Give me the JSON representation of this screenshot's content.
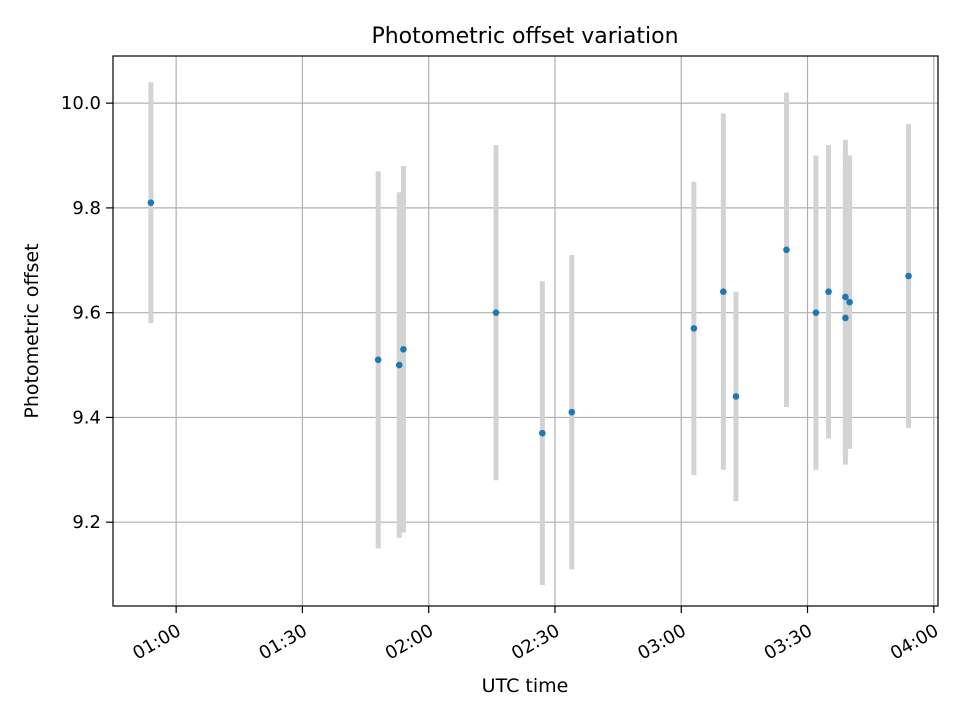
{
  "chart_data": {
    "type": "scatter",
    "title": "Photometric offset variation",
    "xlabel": "UTC time",
    "ylabel": "Photometric offset",
    "x_format": "time HH:MM (UTC)",
    "xlim": [
      "00:45",
      "04:01"
    ],
    "ylim": [
      9.04,
      10.09
    ],
    "x_ticks": [
      "01:00",
      "01:30",
      "02:00",
      "02:30",
      "03:00",
      "03:30",
      "04:00"
    ],
    "y_ticks": [
      "9.2",
      "9.4",
      "9.6",
      "9.8",
      "10.0"
    ],
    "grid": true,
    "colors": {
      "point": "#1f77b4",
      "errorbar": "#d3d3d3",
      "grid": "#b0b0b0"
    },
    "series": [
      {
        "points": [
          {
            "x": "00:54",
            "y": 9.81,
            "yerr": 0.23
          },
          {
            "x": "01:48",
            "y": 9.51,
            "yerr": 0.36
          },
          {
            "x": "01:53",
            "y": 9.5,
            "yerr": 0.33
          },
          {
            "x": "01:54",
            "y": 9.53,
            "yerr": 0.35
          },
          {
            "x": "02:16",
            "y": 9.6,
            "yerr": 0.32
          },
          {
            "x": "02:27",
            "y": 9.37,
            "yerr": 0.29
          },
          {
            "x": "02:34",
            "y": 9.41,
            "yerr": 0.3
          },
          {
            "x": "03:03",
            "y": 9.57,
            "yerr": 0.28
          },
          {
            "x": "03:10",
            "y": 9.64,
            "yerr": 0.34
          },
          {
            "x": "03:13",
            "y": 9.44,
            "yerr": 0.2
          },
          {
            "x": "03:25",
            "y": 9.72,
            "yerr": 0.3
          },
          {
            "x": "03:32",
            "y": 9.6,
            "yerr": 0.3
          },
          {
            "x": "03:35",
            "y": 9.64,
            "yerr": 0.28
          },
          {
            "x": "03:39",
            "y": 9.63,
            "yerr": 0.3
          },
          {
            "x": "03:39",
            "y": 9.59,
            "yerr": 0.28
          },
          {
            "x": "03:40",
            "y": 9.62,
            "yerr": 0.28
          },
          {
            "x": "03:54",
            "y": 9.67,
            "yerr": 0.29
          }
        ]
      }
    ]
  }
}
